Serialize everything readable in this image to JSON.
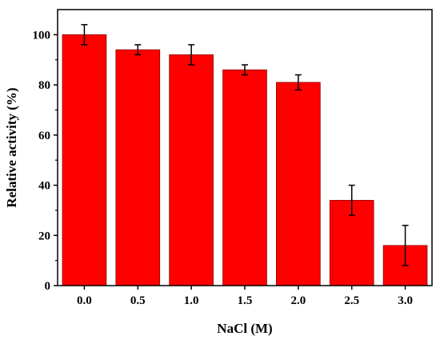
{
  "chart_data": {
    "type": "bar",
    "categories": [
      "0.0",
      "0.5",
      "1.0",
      "1.5",
      "2.0",
      "2.5",
      "3.0"
    ],
    "values": [
      100,
      94,
      92,
      86,
      81,
      34,
      16
    ],
    "error": [
      4,
      2,
      4,
      2,
      3,
      6,
      8
    ],
    "xlabel": "NaCl (M)",
    "ylabel": "Relative activity (%)",
    "ylim": [
      0,
      110
    ],
    "yticks": [
      "0",
      "20",
      "40",
      "60",
      "80",
      "100"
    ],
    "grid": false,
    "bar_color": "#ff0000",
    "bar_edge_color": "#8b0000"
  }
}
